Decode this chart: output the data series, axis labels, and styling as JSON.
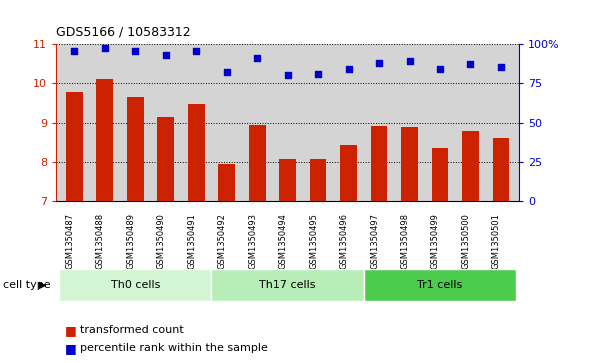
{
  "title": "GDS5166 / 10583312",
  "samples": [
    "GSM1350487",
    "GSM1350488",
    "GSM1350489",
    "GSM1350490",
    "GSM1350491",
    "GSM1350492",
    "GSM1350493",
    "GSM1350494",
    "GSM1350495",
    "GSM1350496",
    "GSM1350497",
    "GSM1350498",
    "GSM1350499",
    "GSM1350500",
    "GSM1350501"
  ],
  "transformed_count": [
    9.78,
    10.1,
    9.65,
    9.15,
    9.48,
    7.95,
    8.93,
    8.07,
    8.08,
    8.43,
    8.9,
    8.88,
    8.35,
    8.78,
    8.6
  ],
  "percentile_rank": [
    95,
    97,
    95,
    93,
    95,
    82,
    91,
    80,
    81,
    84,
    88,
    89,
    84,
    87,
    85
  ],
  "cell_types": [
    {
      "label": "Th0 cells",
      "start": 0,
      "end": 5,
      "color": "#d4f5d4"
    },
    {
      "label": "Th17 cells",
      "start": 5,
      "end": 10,
      "color": "#b8edb8"
    },
    {
      "label": "Tr1 cells",
      "start": 10,
      "end": 15,
      "color": "#4ccc4c"
    }
  ],
  "bar_color": "#cc2200",
  "dot_color": "#0000cc",
  "ylim_left": [
    7,
    11
  ],
  "ylim_right": [
    0,
    100
  ],
  "yticks_left": [
    7,
    8,
    9,
    10,
    11
  ],
  "yticks_right": [
    0,
    25,
    50,
    75,
    100
  ],
  "yticklabels_right": [
    "0",
    "25",
    "50",
    "75",
    "100%"
  ],
  "plot_bg_color": "#d4d4d4",
  "label_bg_color": "#c8c8c8",
  "cell_type_label": "cell type",
  "legend_bar_label": "transformed count",
  "legend_dot_label": "percentile rank within the sample"
}
